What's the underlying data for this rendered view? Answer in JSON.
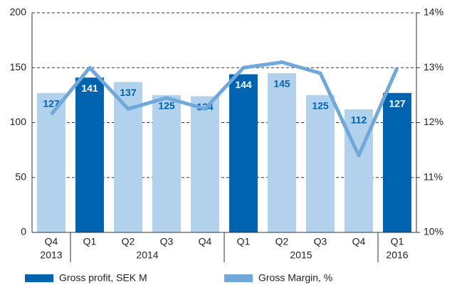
{
  "chart_data": {
    "type": "bar_line",
    "categories": [
      "Q4",
      "Q1",
      "Q2",
      "Q3",
      "Q4",
      "Q1",
      "Q2",
      "Q3",
      "Q4",
      "Q1"
    ],
    "groups": [
      {
        "label": "2013",
        "count": 1
      },
      {
        "label": "2014",
        "count": 4
      },
      {
        "label": "2015",
        "count": 4
      },
      {
        "label": "2016",
        "count": 1
      }
    ],
    "series": [
      {
        "name": "Gross profit, SEK M",
        "type": "bar",
        "color": "#0063b0",
        "colors": [
          "#b2d1ec",
          "#0063b0",
          "#b2d1ec",
          "#b2d1ec",
          "#b2d1ec",
          "#0063b0",
          "#b2d1ec",
          "#b2d1ec",
          "#b2d1ec",
          "#0063b0"
        ],
        "values": [
          127,
          141,
          137,
          125,
          124,
          144,
          145,
          125,
          112,
          127
        ]
      },
      {
        "name": "Gross Margin, %",
        "type": "line",
        "axis": "y2",
        "color": "#6fa8d9",
        "values": [
          12.15,
          13.0,
          12.25,
          12.45,
          12.25,
          13.0,
          13.1,
          12.9,
          11.4,
          13.0
        ]
      }
    ],
    "ylim": [
      0,
      200
    ],
    "yticks": [
      0,
      50,
      100,
      150,
      200
    ],
    "y2lim": [
      10,
      14
    ],
    "y2ticks": [
      {
        "value": 10,
        "label": "10%"
      },
      {
        "value": 11,
        "label": "11%"
      },
      {
        "value": 12,
        "label": "12%"
      },
      {
        "value": 13,
        "label": "13%"
      },
      {
        "value": 14,
        "label": "14%"
      }
    ],
    "grid": true,
    "legend": "bottom"
  }
}
